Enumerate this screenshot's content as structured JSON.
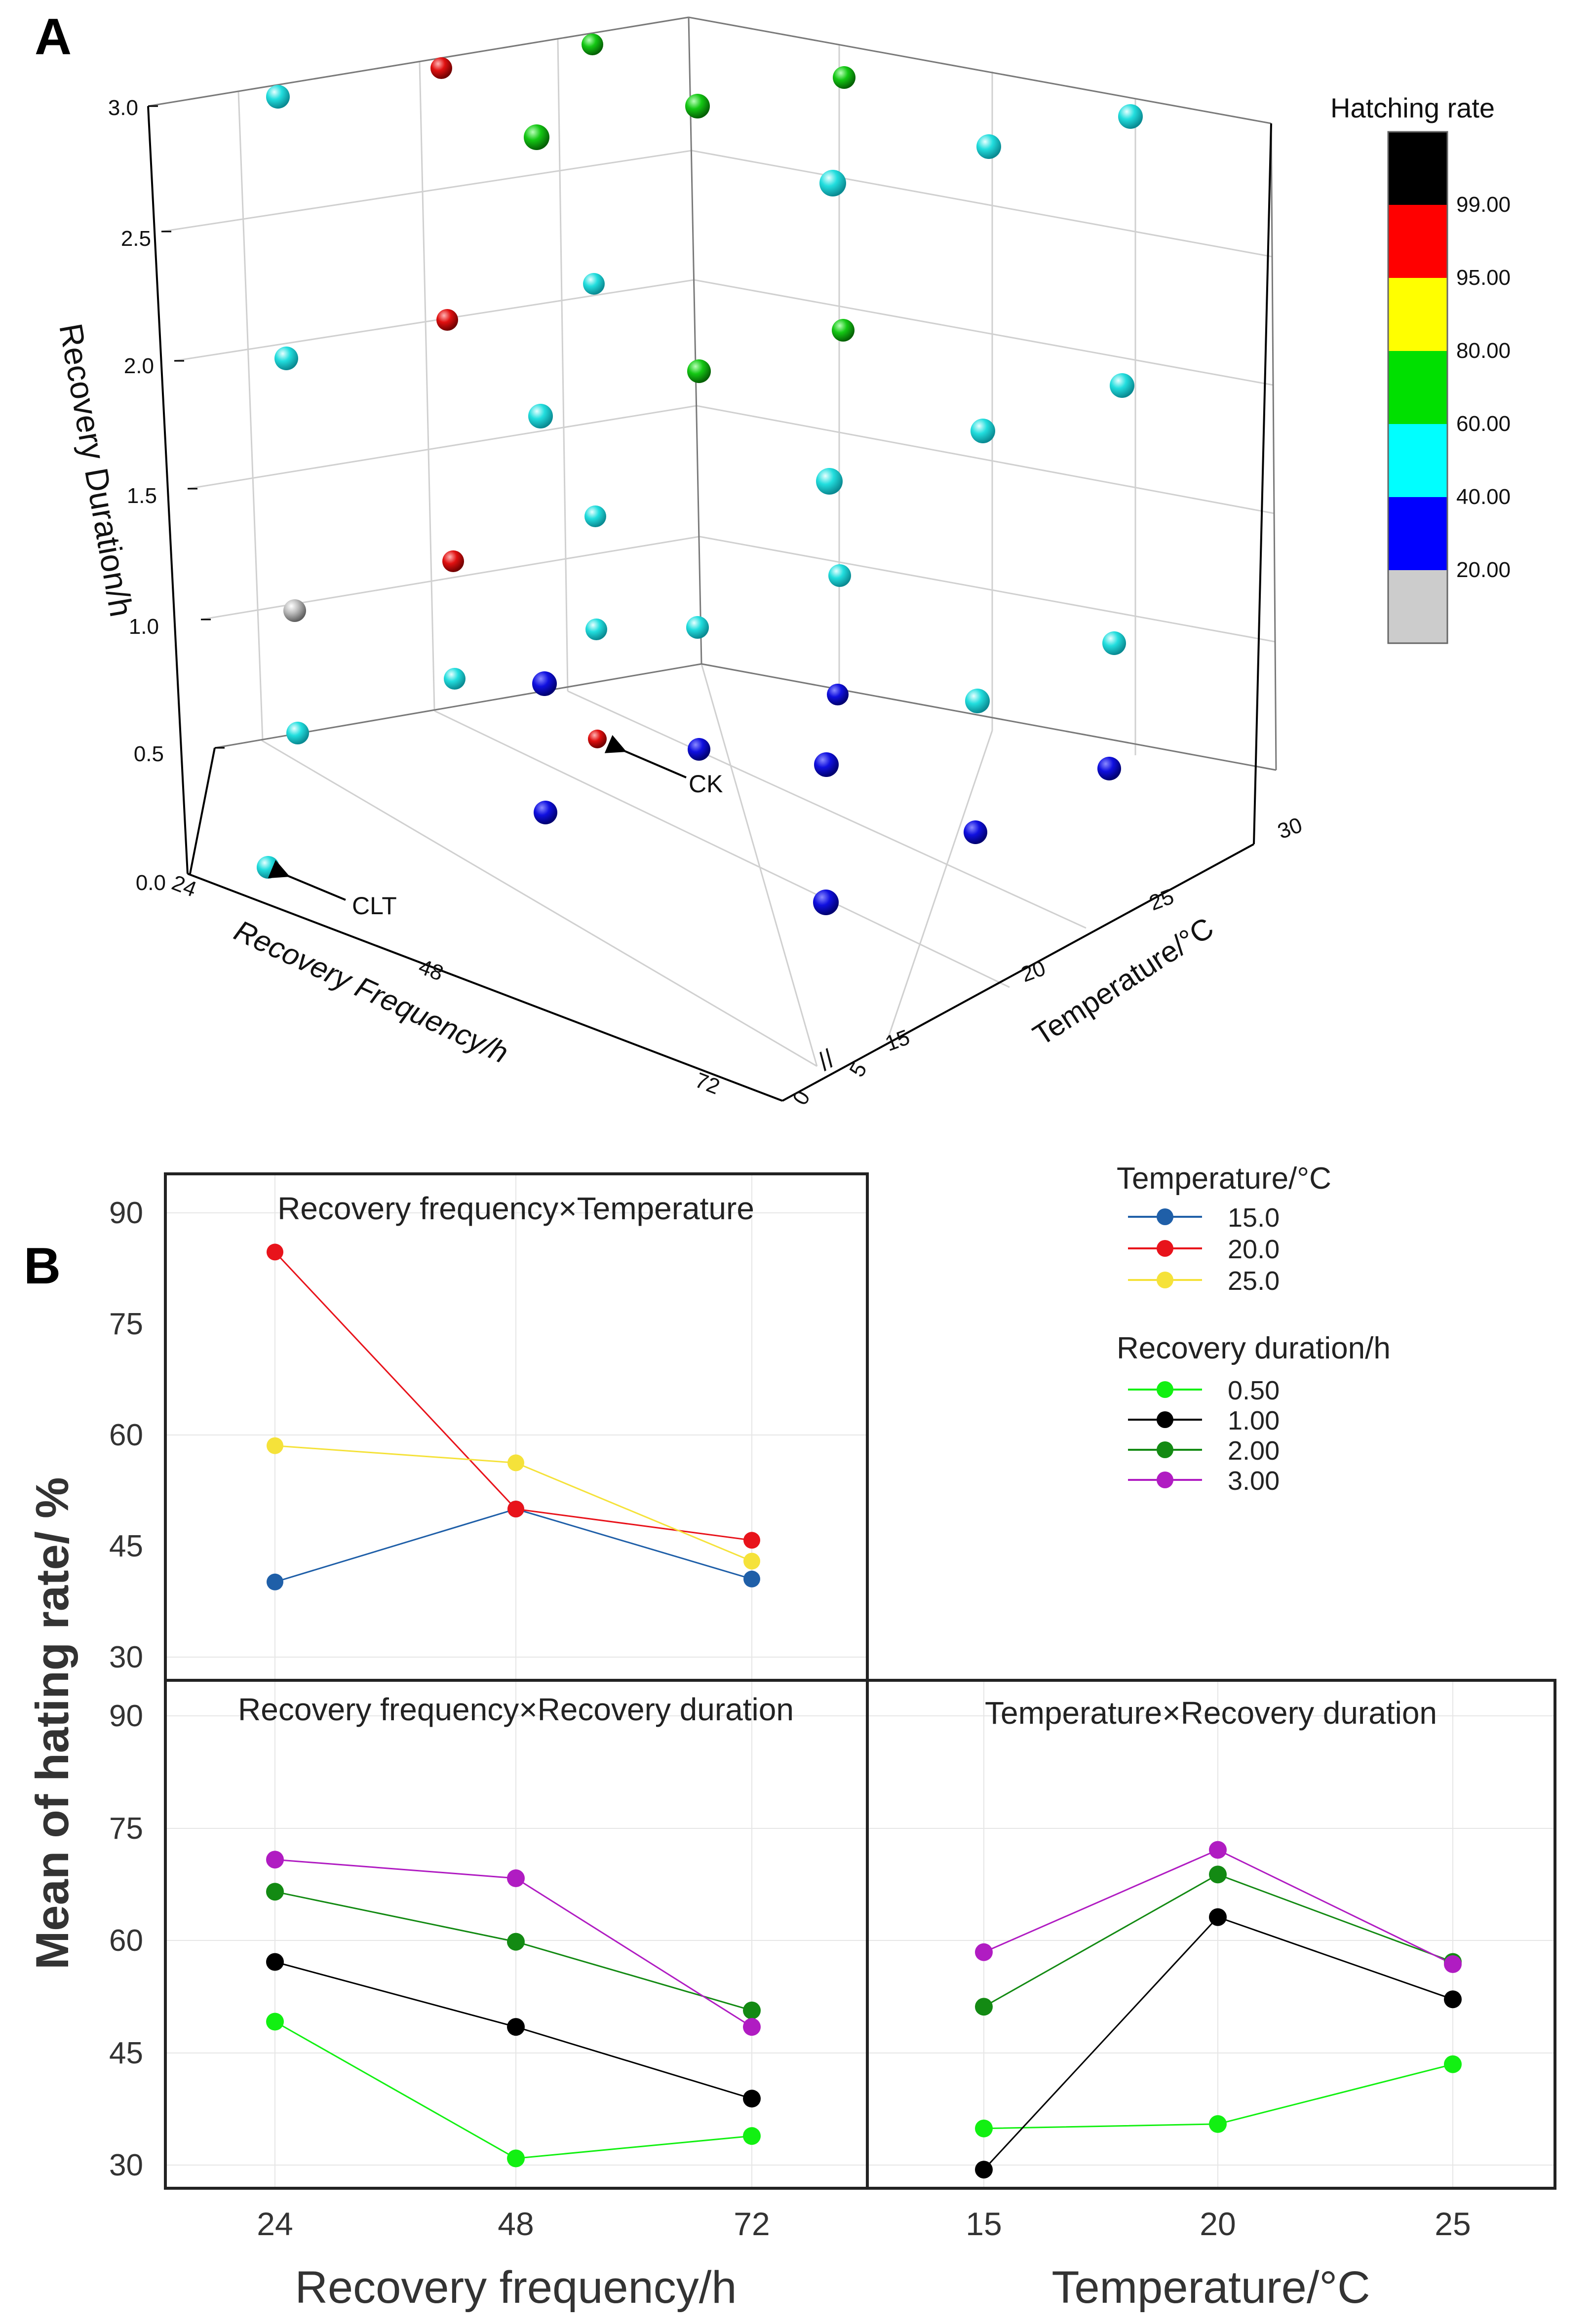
{
  "panel_labels": {
    "a": "A",
    "b": "B"
  },
  "chart_data": [
    {
      "id": "A",
      "type": "scatter",
      "subtype": "3d-scatter",
      "axes": {
        "x": {
          "label": "Recovery Frequency/h",
          "ticks": [
            "24",
            "48",
            "72"
          ]
        },
        "y": {
          "label": "Temperature/°C",
          "ticks": [
            "0",
            "5",
            "15",
            "20",
            "25",
            "30"
          ],
          "break_marker": "//"
        },
        "z": {
          "label": "Recovery Duration/h",
          "ticks": [
            "0.0",
            "0.5",
            "1.0",
            "1.5",
            "2.0",
            "2.5",
            "3.0"
          ],
          "range": [
            0,
            3
          ]
        }
      },
      "colorbar": {
        "title": "Hatching rate",
        "bins": [
          {
            "color": "#000000",
            "label": "99.00"
          },
          {
            "color": "#ff0000",
            "label": "95.00"
          },
          {
            "color": "#ffff00",
            "label": "80.00"
          },
          {
            "color": "#00e000",
            "label": "60.00"
          },
          {
            "color": "#00ffff",
            "label": "40.00"
          },
          {
            "color": "#0000ff",
            "label": "20.00"
          },
          {
            "color": "#cccccc",
            "label": ""
          }
        ]
      },
      "annotations": [
        {
          "text": "CK"
        },
        {
          "text": "CLT"
        }
      ],
      "points_color_key": [
        "gray",
        "cyan",
        "blue",
        "green",
        "red"
      ]
    },
    {
      "id": "B1",
      "type": "line",
      "title": "Recovery frequency×Temperature",
      "categories": [
        "24",
        "48",
        "72"
      ],
      "ylim": [
        28,
        96
      ],
      "yticks": [
        "30",
        "45",
        "60",
        "75",
        "90"
      ],
      "series": [
        {
          "name": "15.0",
          "color": "#1f5fa8",
          "values": [
            41.2,
            51.0,
            41.6
          ]
        },
        {
          "name": "20.0",
          "color": "#e8131b",
          "values": [
            85.5,
            51.0,
            46.8
          ]
        },
        {
          "name": "25.0",
          "color": "#f5e23a",
          "values": [
            59.5,
            57.2,
            44.0
          ]
        }
      ]
    },
    {
      "id": "B2",
      "type": "line",
      "title": "Recovery frequency×Recovery duration",
      "categories": [
        "24",
        "48",
        "72"
      ],
      "ylim": [
        28,
        96
      ],
      "yticks": [
        "30",
        "45",
        "60",
        "75",
        "90"
      ],
      "xlabel": "Recovery frequency/h",
      "series": [
        {
          "name": "0.50",
          "color": "#12f012",
          "values": [
            50.3,
            32.0,
            35.0
          ]
        },
        {
          "name": "1.00",
          "color": "#000000",
          "values": [
            58.3,
            49.6,
            40.0
          ]
        },
        {
          "name": "2.00",
          "color": "#138a13",
          "values": [
            67.7,
            61.0,
            51.8
          ]
        },
        {
          "name": "3.00",
          "color": "#b01cc2",
          "values": [
            72.0,
            69.5,
            49.6
          ]
        }
      ]
    },
    {
      "id": "B3",
      "type": "line",
      "title": "Temperature×Recovery duration",
      "categories": [
        "15",
        "20",
        "25"
      ],
      "ylim": [
        28,
        96
      ],
      "xlabel": "Temperature/°C",
      "series": [
        {
          "name": "0.50",
          "color": "#12f012",
          "values": [
            36.0,
            36.6,
            44.6
          ]
        },
        {
          "name": "1.00",
          "color": "#000000",
          "values": [
            30.5,
            64.3,
            53.3
          ]
        },
        {
          "name": "2.00",
          "color": "#138a13",
          "values": [
            52.3,
            70.0,
            58.3
          ]
        },
        {
          "name": "3.00",
          "color": "#b01cc2",
          "values": [
            59.6,
            73.3,
            58.0
          ]
        }
      ]
    }
  ],
  "panelB": {
    "ylabel": "Mean of hating rate/ %",
    "legend": {
      "temperature_title": "Temperature/°C",
      "temperature_items": [
        {
          "label": "15.0",
          "color": "#1f5fa8"
        },
        {
          "label": "20.0",
          "color": "#e8131b"
        },
        {
          "label": "25.0",
          "color": "#f5e23a"
        }
      ],
      "duration_title": "Recovery duration/h",
      "duration_items": [
        {
          "label": "0.50",
          "color": "#12f012"
        },
        {
          "label": "1.00",
          "color": "#000000"
        },
        {
          "label": "2.00",
          "color": "#138a13"
        },
        {
          "label": "3.00",
          "color": "#b01cc2"
        }
      ]
    }
  }
}
